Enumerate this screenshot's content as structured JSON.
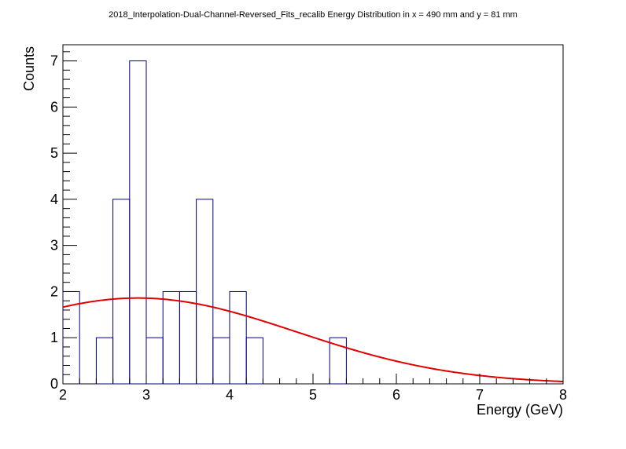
{
  "chart_data": {
    "type": "histogram",
    "title": "2018_Interpolation-Dual-Channel-Reversed_Fits_recalib Energy Distribution in x = 490 mm and y = 81 mm",
    "xlabel": "Energy (GeV)",
    "ylabel": "Counts",
    "xlim": [
      2,
      8
    ],
    "ylim": [
      0,
      7.35
    ],
    "x_ticks": [
      "2",
      "3",
      "4",
      "5",
      "6",
      "7",
      "8"
    ],
    "y_ticks": [
      "0",
      "1",
      "2",
      "3",
      "4",
      "5",
      "6",
      "7"
    ],
    "bin_edges": [
      2.0,
      2.2,
      2.4,
      2.6,
      2.8,
      3.0,
      3.2,
      3.4,
      3.6,
      3.8,
      4.0,
      4.2,
      4.4,
      4.6,
      4.8,
      5.0,
      5.2,
      5.4,
      5.6,
      5.8,
      6.0,
      6.2,
      6.4,
      6.6,
      6.8,
      7.0,
      7.2,
      7.4,
      7.6,
      7.8,
      8.0
    ],
    "bin_counts": [
      2,
      0,
      1,
      4,
      7,
      1,
      2,
      2,
      4,
      1,
      2,
      1,
      0,
      0,
      0,
      0,
      1,
      0,
      0,
      0,
      0,
      0,
      0,
      0,
      0,
      0,
      0,
      0,
      0,
      0
    ],
    "fit": {
      "type": "gaussian",
      "amplitude": 1.86,
      "mean": 2.9,
      "sigma": 1.9
    },
    "colors": {
      "histogram": "#000080",
      "fit": "#e00000"
    },
    "grid": false,
    "legend": "none"
  }
}
